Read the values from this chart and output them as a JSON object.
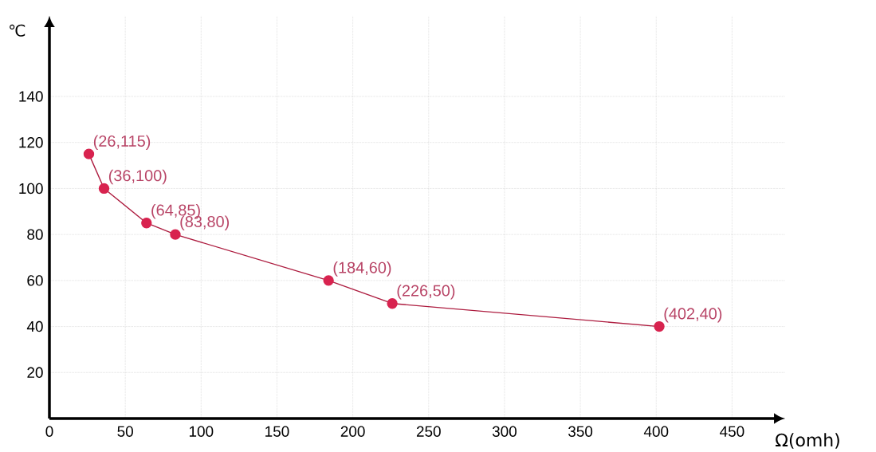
{
  "chart_data": {
    "type": "line",
    "xlabel": "Ω(omh)",
    "ylabel": "℃",
    "x": [
      26,
      36,
      64,
      83,
      184,
      226,
      402
    ],
    "series": [
      {
        "color": "#d8234f",
        "values": [
          115,
          100,
          85,
          80,
          60,
          50,
          40
        ]
      }
    ],
    "annotations": [
      {
        "text": "(26,115)",
        "x": 26,
        "y": 115
      },
      {
        "text": "(36,100)",
        "x": 36,
        "y": 100
      },
      {
        "text": "(64,85)",
        "x": 64,
        "y": 85
      },
      {
        "text": "(83,80)",
        "x": 83,
        "y": 80
      },
      {
        "text": "(184,60)",
        "x": 184,
        "y": 60
      },
      {
        "text": "(226,50)",
        "x": 226,
        "y": 50
      },
      {
        "text": "(402,40)",
        "x": 402,
        "y": 40
      }
    ],
    "xlim": [
      0,
      485
    ],
    "ylim": [
      0,
      175
    ],
    "xticks": [
      0,
      50,
      100,
      150,
      200,
      250,
      300,
      350,
      400,
      450
    ],
    "yticks": [
      20,
      40,
      60,
      80,
      100,
      120,
      140
    ],
    "grid": true,
    "marker": "circle",
    "line_style": "solid"
  }
}
